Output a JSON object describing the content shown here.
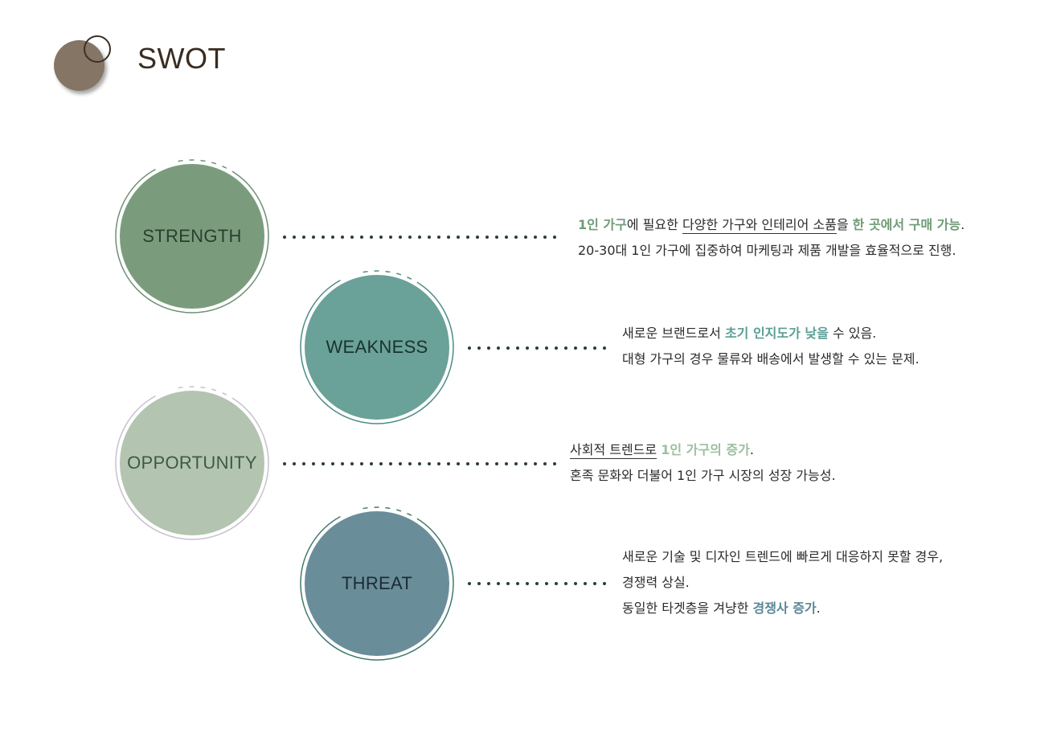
{
  "header": {
    "title": "SWOT"
  },
  "items": [
    {
      "key": "strength",
      "label": "STRENGTH",
      "color": "#7a9c7d",
      "lines": [
        {
          "parts": [
            {
              "t": "1인 가구",
              "s": "hl-g"
            },
            {
              "t": "에 필요한 ",
              "s": ""
            },
            {
              "t": "다양한 가구와 인테리어 소품",
              "s": "ul"
            },
            {
              "t": "을 ",
              "s": ""
            },
            {
              "t": "한 곳에서 구매 가능",
              "s": "hl-g"
            },
            {
              "t": ".",
              "s": ""
            }
          ]
        },
        {
          "parts": [
            {
              "t": "20-30대 1인 가구에 집중하여 마케팅과 제품 개발을 효율적으로 진행.",
              "s": ""
            }
          ]
        }
      ]
    },
    {
      "key": "weakness",
      "label": "WEAKNESS",
      "color": "#6aa199",
      "lines": [
        {
          "parts": [
            {
              "t": "새로운 브랜드로서 ",
              "s": ""
            },
            {
              "t": "초기 인지도가 낮을",
              "s": "hl-t"
            },
            {
              "t": " 수 있음.",
              "s": ""
            }
          ]
        },
        {
          "parts": [
            {
              "t": "대형 가구의 경우 물류와 배송에서 발생할 수 있는 문제.",
              "s": ""
            }
          ]
        }
      ]
    },
    {
      "key": "opportunity",
      "label": "OPPORTUNITY",
      "color": "#b3c5b0",
      "lines": [
        {
          "parts": [
            {
              "t": "사회적 트렌드로",
              "s": "ul"
            },
            {
              "t": " ",
              "s": ""
            },
            {
              "t": "1인 가구의 증가",
              "s": "hl-o"
            },
            {
              "t": ".",
              "s": ""
            }
          ]
        },
        {
          "parts": [
            {
              "t": "혼족 문화와 더불어 1인 가구 시장의 성장 가능성.",
              "s": ""
            }
          ]
        }
      ]
    },
    {
      "key": "threat",
      "label": "THREAT",
      "color": "#6a8d9a",
      "lines": [
        {
          "parts": [
            {
              "t": "새로운 기술 및 디자인 트렌드에 빠르게 대응하지 못할 경우,",
              "s": ""
            }
          ]
        },
        {
          "parts": [
            {
              "t": "경쟁력 상실.",
              "s": ""
            }
          ]
        },
        {
          "parts": [
            {
              "t": "동일한 타겟층을 겨냥한 ",
              "s": ""
            },
            {
              "t": "경쟁사 증가",
              "s": "hl-b"
            },
            {
              "t": ".",
              "s": ""
            }
          ]
        }
      ]
    }
  ]
}
